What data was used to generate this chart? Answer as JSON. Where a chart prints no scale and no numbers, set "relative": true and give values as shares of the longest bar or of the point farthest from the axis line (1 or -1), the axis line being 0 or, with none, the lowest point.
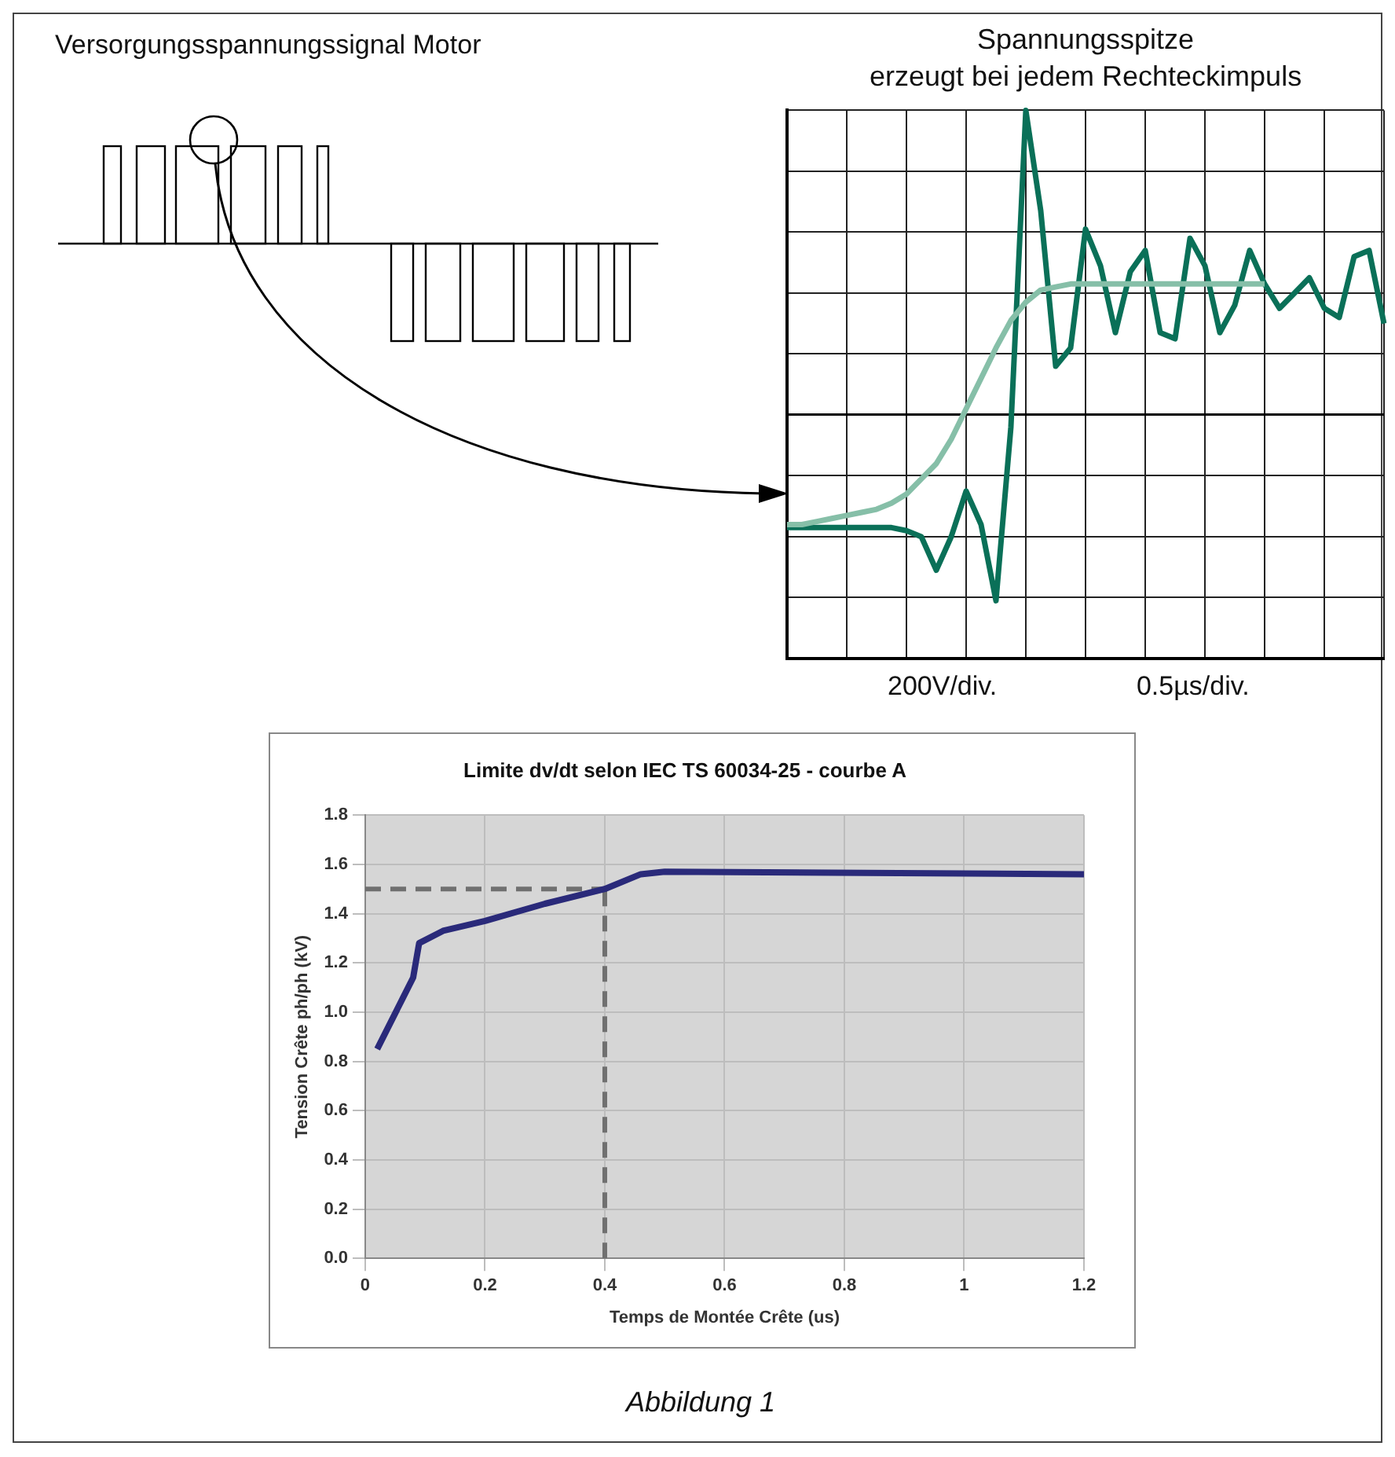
{
  "chart_data": [
    {
      "type": "line",
      "title": "Spannungsspitze",
      "subtitle": "erzeugt bei jedem Rechteckimpuls",
      "annotations": [
        "Versorgungsspannungssignal Motor",
        "200V/div.",
        "0.5µs/div."
      ],
      "relative": true,
      "grid": true,
      "categories": [
        null,
        null,
        null,
        null,
        null,
        null,
        null,
        null,
        null,
        null,
        null,
        null,
        null,
        null,
        null,
        null,
        null,
        null,
        null,
        null,
        null,
        null,
        null,
        null,
        null,
        null,
        null,
        null,
        null,
        null,
        null,
        null,
        null,
        null,
        null,
        null,
        null,
        null,
        null,
        null,
        null
      ],
      "series": [
        {
          "color": "#86bfa8",
          "values": [
            -0.36,
            -0.36,
            -0.35,
            -0.34,
            -0.33,
            -0.32,
            -0.31,
            -0.29,
            -0.26,
            -0.21,
            -0.16,
            -0.08,
            0.02,
            0.12,
            0.22,
            0.31,
            0.37,
            0.41,
            0.42,
            0.43,
            0.43,
            0.43,
            0.43,
            0.43,
            0.43,
            0.43,
            0.43,
            0.43,
            0.43,
            0.43,
            0.43,
            0.43,
            0.43,
            null,
            null,
            null,
            null,
            null,
            null,
            null,
            null
          ]
        },
        {
          "color": "#0a7058",
          "values": [
            -0.37,
            -0.37,
            -0.37,
            -0.37,
            -0.37,
            -0.37,
            -0.37,
            -0.37,
            -0.38,
            -0.4,
            -0.51,
            -0.4,
            -0.25,
            -0.36,
            -0.61,
            -0.04,
            1,
            0.67,
            0.16,
            0.22,
            0.61,
            0.49,
            0.27,
            0.47,
            0.54,
            0.27,
            0.25,
            0.58,
            0.49,
            0.27,
            0.36,
            0.54,
            0.43,
            0.35,
            0.4,
            0.45,
            0.35,
            0.32,
            0.52,
            0.54,
            0.3
          ]
        }
      ]
    },
    {
      "type": "line",
      "title": "Limite dv/dt selon IEC TS 60034-25 - courbe A",
      "xlabel": "Temps de Montée Crête (us)",
      "ylabel": "Tension Crête ph/ph (kV)",
      "annotations": [
        "Abbildung 1"
      ],
      "grid": true,
      "x": [
        0.02,
        0.08,
        0.09,
        0.13,
        0.2,
        0.3,
        0.4,
        0.46,
        0.5,
        1.2
      ],
      "series": [
        {
          "color": "#2a2a7a",
          "values": [
            0.85,
            1.14,
            1.28,
            1.33,
            1.37,
            1.44,
            1.5,
            1.56,
            1.57,
            1.56
          ]
        }
      ],
      "xlim": [
        0,
        1.2
      ],
      "xticks": [
        0,
        0.2,
        0.4,
        0.6,
        0.8,
        1,
        1.2
      ],
      "ylim": [
        0,
        1.8
      ],
      "yticks": [
        {
          "value": 0,
          "label": "0.0"
        },
        0.2,
        0.4,
        0.6,
        0.8,
        {
          "value": 1,
          "label": "1.0"
        },
        1.2,
        1.4,
        1.6,
        1.8
      ],
      "ref_lines": [
        {
          "axis": "y",
          "value": 1.5,
          "color": "#707070",
          "line_style": "dashed"
        },
        {
          "axis": "x",
          "value": 0.4,
          "color": "#707070",
          "line_style": "dashed"
        }
      ]
    }
  ]
}
